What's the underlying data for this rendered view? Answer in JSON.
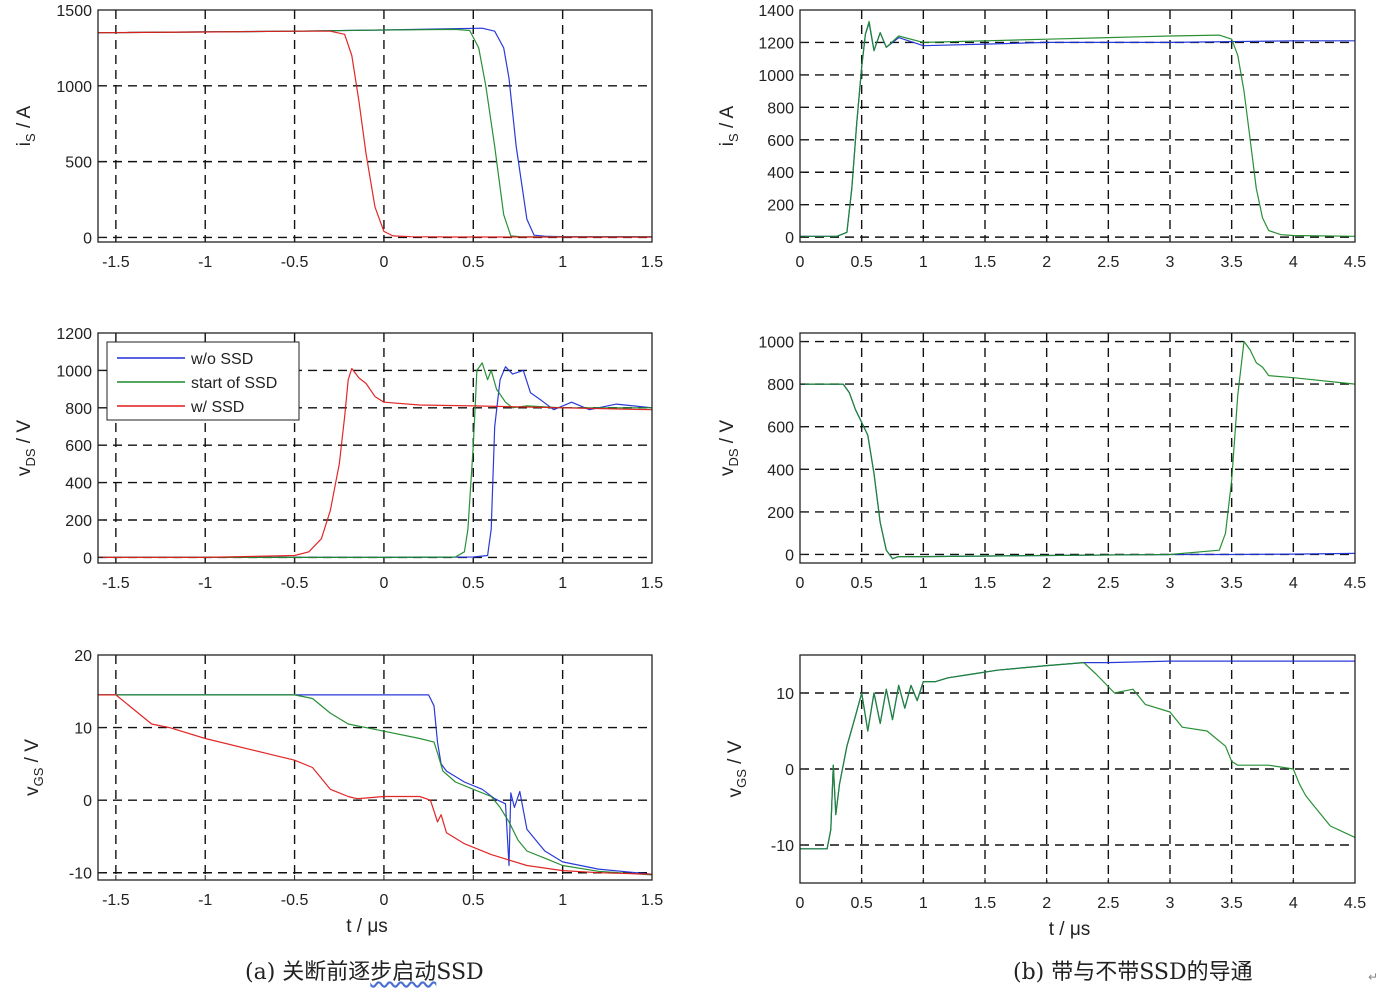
{
  "colors": {
    "wo_ssd": "#1f2fd6",
    "start_ssd": "#1d8a2a",
    "w_ssd": "#e01b1b",
    "grid": "#111111",
    "axis": "#222222"
  },
  "captions": {
    "a_prefix": "(a) 关断前逐",
    "a_underlined": "步启动",
    "a_suffix": "SSD",
    "b": "(b) 带与不带SSD的导通",
    "para_mark": "↵"
  },
  "chart_data": [
    {
      "id": "a1",
      "type": "line",
      "xlim": [
        -1.6,
        1.5
      ],
      "ylim": [
        -30,
        1500
      ],
      "xticks": [
        -1.5,
        -1,
        -0.5,
        0,
        0.5,
        1,
        1.5
      ],
      "xtick_labels": [
        "-1.5",
        "-1",
        "-0.5",
        "0",
        "0.5",
        "1",
        "1.5"
      ],
      "yticks": [
        0,
        500,
        1000,
        1500
      ],
      "ytick_labels": [
        "0",
        "500",
        "1000",
        "1500"
      ],
      "ylabel": "i",
      "ylabel_sub": "S",
      "ylabel_unit": " / A",
      "xlabel": "",
      "grid": true,
      "series": [
        {
          "name": "w/o SSD",
          "color_key": "wo_ssd",
          "x": [
            -1.6,
            -0.5,
            0.0,
            0.3,
            0.55,
            0.62,
            0.67,
            0.7,
            0.74,
            0.8,
            0.84,
            0.9,
            1.0,
            1.5
          ],
          "y": [
            1350,
            1360,
            1368,
            1375,
            1380,
            1360,
            1250,
            1050,
            600,
            120,
            15,
            8,
            5,
            5
          ]
        },
        {
          "name": "start of SSD",
          "color_key": "start_ssd",
          "x": [
            -1.6,
            -0.5,
            0.0,
            0.4,
            0.48,
            0.53,
            0.57,
            0.62,
            0.67,
            0.71,
            0.76,
            0.8,
            1.5
          ],
          "y": [
            1350,
            1360,
            1368,
            1372,
            1365,
            1250,
            1000,
            600,
            150,
            10,
            5,
            4,
            4
          ]
        },
        {
          "name": "w/ SSD",
          "color_key": "w_ssd",
          "x": [
            -1.6,
            -1.0,
            -0.5,
            -0.3,
            -0.22,
            -0.18,
            -0.14,
            -0.1,
            -0.05,
            0.0,
            0.05,
            0.15,
            0.4,
            1.5
          ],
          "y": [
            1350,
            1355,
            1360,
            1360,
            1340,
            1200,
            900,
            550,
            200,
            40,
            10,
            5,
            3,
            2
          ]
        }
      ]
    },
    {
      "id": "a2",
      "type": "line",
      "xlim": [
        -1.6,
        1.5
      ],
      "ylim": [
        -30,
        1200
      ],
      "xticks": [
        -1.5,
        -1,
        -0.5,
        0,
        0.5,
        1,
        1.5
      ],
      "xtick_labels": [
        "-1.5",
        "-1",
        "-0.5",
        "0",
        "0.5",
        "1",
        "1.5"
      ],
      "yticks": [
        0,
        200,
        400,
        600,
        800,
        1000,
        1200
      ],
      "ytick_labels": [
        "0",
        "200",
        "400",
        "600",
        "800",
        "1000",
        "1200"
      ],
      "ylabel": "v",
      "ylabel_sub": "DS",
      "ylabel_unit": " / V",
      "xlabel": "",
      "grid": true,
      "legend": {
        "position": "top-left",
        "entries": [
          "w/o SSD",
          "start of SSD",
          "w/ SSD"
        ]
      },
      "series": [
        {
          "name": "w/o SSD",
          "color_key": "wo_ssd",
          "x": [
            -1.6,
            0.0,
            0.5,
            0.58,
            0.6,
            0.62,
            0.65,
            0.68,
            0.72,
            0.78,
            0.82,
            0.88,
            0.95,
            1.05,
            1.15,
            1.3,
            1.5
          ],
          "y": [
            0,
            0,
            2,
            10,
            150,
            700,
            950,
            1020,
            980,
            1000,
            880,
            840,
            790,
            830,
            790,
            820,
            800
          ]
        },
        {
          "name": "start of SSD",
          "color_key": "start_ssd",
          "x": [
            -1.6,
            0.0,
            0.4,
            0.45,
            0.47,
            0.5,
            0.52,
            0.55,
            0.58,
            0.6,
            0.63,
            0.68,
            0.72,
            0.8,
            1.0,
            1.5
          ],
          "y": [
            0,
            0,
            2,
            30,
            150,
            600,
            1000,
            1040,
            950,
            1000,
            900,
            830,
            800,
            810,
            800,
            800
          ]
        },
        {
          "name": "w/ SSD",
          "color_key": "w_ssd",
          "x": [
            -1.6,
            -1.0,
            -0.5,
            -0.42,
            -0.35,
            -0.3,
            -0.25,
            -0.22,
            -0.2,
            -0.18,
            -0.14,
            -0.1,
            -0.05,
            0.0,
            0.2,
            0.5,
            1.0,
            1.5
          ],
          "y": [
            0,
            0,
            10,
            30,
            100,
            250,
            500,
            750,
            950,
            1010,
            960,
            930,
            860,
            830,
            815,
            810,
            800,
            790
          ]
        }
      ]
    },
    {
      "id": "a3",
      "type": "line",
      "xlim": [
        -1.6,
        1.5
      ],
      "ylim": [
        -11,
        20
      ],
      "xticks": [
        -1.5,
        -1,
        -0.5,
        0,
        0.5,
        1,
        1.5
      ],
      "xtick_labels": [
        "-1.5",
        "-1",
        "-0.5",
        "0",
        "0.5",
        "1",
        "1.5"
      ],
      "yticks": [
        -10,
        0,
        10,
        20
      ],
      "ytick_labels": [
        "-10",
        "0",
        "10",
        "20"
      ],
      "ylabel": "v",
      "ylabel_sub": "GS",
      "ylabel_unit": " / V",
      "xlabel": "t / μs",
      "grid": true,
      "series": [
        {
          "name": "w/o SSD",
          "color_key": "wo_ssd",
          "x": [
            -1.6,
            -1.0,
            -0.5,
            0.0,
            0.25,
            0.28,
            0.3,
            0.32,
            0.35,
            0.45,
            0.55,
            0.62,
            0.68,
            0.7,
            0.71,
            0.73,
            0.76,
            0.8,
            0.85,
            0.9,
            1.0,
            1.2,
            1.5
          ],
          "y": [
            14.5,
            14.5,
            14.5,
            14.5,
            14.5,
            13.0,
            8.0,
            5.0,
            4.0,
            2.5,
            1.5,
            0.2,
            -0.5,
            -9.0,
            1.0,
            -1.0,
            1.2,
            -4.0,
            -5.5,
            -7.0,
            -8.5,
            -9.5,
            -10.2
          ]
        },
        {
          "name": "start of SSD",
          "color_key": "start_ssd",
          "x": [
            -1.6,
            -0.5,
            -0.4,
            -0.3,
            -0.2,
            0.0,
            0.2,
            0.28,
            0.3,
            0.33,
            0.4,
            0.5,
            0.6,
            0.65,
            0.7,
            0.75,
            0.8,
            0.9,
            1.0,
            1.2,
            1.5
          ],
          "y": [
            14.5,
            14.5,
            14.0,
            12.0,
            10.5,
            9.5,
            8.5,
            8.0,
            6.5,
            4.0,
            2.5,
            1.5,
            0.5,
            -1.0,
            -3.0,
            -5.5,
            -7.0,
            -8.0,
            -9.0,
            -9.8,
            -10.3
          ]
        },
        {
          "name": "w/ SSD",
          "color_key": "w_ssd",
          "x": [
            -1.6,
            -1.5,
            -1.4,
            -1.3,
            -1.2,
            -1.0,
            -0.5,
            -0.4,
            -0.35,
            -0.3,
            -0.25,
            -0.2,
            -0.15,
            -0.1,
            0.0,
            0.2,
            0.26,
            0.28,
            0.3,
            0.32,
            0.35,
            0.45,
            0.6,
            0.8,
            1.0,
            1.2,
            1.5
          ],
          "y": [
            14.5,
            14.5,
            12.5,
            10.5,
            10.0,
            8.5,
            5.5,
            4.5,
            3.0,
            1.5,
            1.0,
            0.5,
            0.2,
            0.3,
            0.5,
            0.5,
            0.0,
            -1.5,
            -3.0,
            -2.0,
            -4.5,
            -6.0,
            -7.5,
            -9.0,
            -9.7,
            -10.0,
            -10.2
          ]
        }
      ]
    },
    {
      "id": "b1",
      "type": "line",
      "xlim": [
        0,
        4.5
      ],
      "ylim": [
        -30,
        1400
      ],
      "xticks": [
        0,
        0.5,
        1,
        1.5,
        2,
        2.5,
        3,
        3.5,
        4,
        4.5
      ],
      "xtick_labels": [
        "0",
        "0.5",
        "1",
        "1.5",
        "2",
        "2.5",
        "3",
        "3.5",
        "4",
        "4.5"
      ],
      "yticks": [
        0,
        200,
        400,
        600,
        800,
        1000,
        1200,
        1400
      ],
      "ytick_labels": [
        "0",
        "200",
        "400",
        "600",
        "800",
        "1000",
        "1200",
        "1400"
      ],
      "ylabel": "i",
      "ylabel_sub": "S",
      "ylabel_unit": " / A",
      "xlabel": "",
      "grid": true,
      "series": [
        {
          "name": "w/o SSD",
          "color_key": "wo_ssd",
          "x": [
            0,
            0.3,
            0.38,
            0.42,
            0.46,
            0.5,
            0.53,
            0.56,
            0.6,
            0.65,
            0.7,
            0.8,
            1.0,
            1.5,
            2.0,
            2.5,
            3.0,
            3.5,
            4.0,
            4.5
          ],
          "y": [
            5,
            5,
            30,
            300,
            700,
            1050,
            1250,
            1320,
            1150,
            1260,
            1170,
            1230,
            1180,
            1190,
            1200,
            1200,
            1200,
            1205,
            1210,
            1210
          ]
        },
        {
          "name": "start of SSD",
          "color_key": "start_ssd",
          "x": [
            0,
            0.3,
            0.38,
            0.42,
            0.46,
            0.5,
            0.53,
            0.56,
            0.6,
            0.65,
            0.7,
            0.8,
            1.0,
            1.5,
            2.0,
            2.5,
            3.0,
            3.4,
            3.5,
            3.55,
            3.6,
            3.65,
            3.7,
            3.75,
            3.8,
            3.9,
            4.0,
            4.5
          ],
          "y": [
            5,
            5,
            30,
            300,
            700,
            1050,
            1250,
            1330,
            1150,
            1260,
            1170,
            1240,
            1200,
            1210,
            1220,
            1230,
            1240,
            1245,
            1220,
            1120,
            900,
            600,
            300,
            120,
            40,
            15,
            10,
            5
          ]
        }
      ]
    },
    {
      "id": "b2",
      "type": "line",
      "xlim": [
        0,
        4.5
      ],
      "ylim": [
        -40,
        1040
      ],
      "xticks": [
        0,
        0.5,
        1,
        1.5,
        2,
        2.5,
        3,
        3.5,
        4,
        4.5
      ],
      "xtick_labels": [
        "0",
        "0.5",
        "1",
        "1.5",
        "2",
        "2.5",
        "3",
        "3.5",
        "4",
        "4.5"
      ],
      "yticks": [
        0,
        200,
        400,
        600,
        800,
        1000
      ],
      "ytick_labels": [
        "0",
        "200",
        "400",
        "600",
        "800",
        "1000"
      ],
      "ylabel": "v",
      "ylabel_sub": "DS",
      "ylabel_unit": " / V",
      "xlabel": "",
      "grid": true,
      "series": [
        {
          "name": "w/o SSD",
          "color_key": "wo_ssd",
          "x": [
            0,
            0.35,
            0.4,
            0.45,
            0.5,
            0.55,
            0.6,
            0.65,
            0.7,
            0.75,
            0.8,
            1.0,
            2.0,
            3.0,
            3.5,
            4.0,
            4.5
          ],
          "y": [
            800,
            800,
            760,
            680,
            620,
            560,
            380,
            150,
            20,
            -20,
            -10,
            -10,
            -5,
            0,
            0,
            2,
            5
          ]
        },
        {
          "name": "start of SSD",
          "color_key": "start_ssd",
          "x": [
            0,
            0.35,
            0.4,
            0.45,
            0.5,
            0.55,
            0.6,
            0.65,
            0.7,
            0.75,
            0.8,
            1.0,
            2.0,
            3.0,
            3.4,
            3.45,
            3.5,
            3.55,
            3.6,
            3.65,
            3.7,
            3.75,
            3.8,
            4.0,
            4.5
          ],
          "y": [
            800,
            800,
            760,
            680,
            620,
            560,
            380,
            150,
            20,
            -20,
            -10,
            -10,
            -5,
            0,
            20,
            100,
            350,
            750,
            1000,
            960,
            900,
            880,
            840,
            830,
            800
          ]
        }
      ]
    },
    {
      "id": "b3",
      "type": "line",
      "xlim": [
        0,
        4.5
      ],
      "ylim": [
        -15,
        15
      ],
      "xticks": [
        0,
        0.5,
        1,
        1.5,
        2,
        2.5,
        3,
        3.5,
        4,
        4.5
      ],
      "xtick_labels": [
        "0",
        "0.5",
        "1",
        "1.5",
        "2",
        "2.5",
        "3",
        "3.5",
        "4",
        "4.5"
      ],
      "yticks": [
        -10,
        0,
        10
      ],
      "ytick_labels": [
        "-10",
        "0",
        "10"
      ],
      "ylabel": "v",
      "ylabel_sub": "GS",
      "ylabel_unit": " / V",
      "xlabel": "t / μs",
      "grid": true,
      "series": [
        {
          "name": "w/o SSD",
          "color_key": "wo_ssd",
          "x": [
            0,
            0.22,
            0.25,
            0.27,
            0.29,
            0.32,
            0.38,
            0.45,
            0.5,
            0.55,
            0.6,
            0.65,
            0.7,
            0.75,
            0.8,
            0.85,
            0.9,
            0.95,
            1.0,
            1.1,
            1.2,
            1.4,
            1.6,
            1.8,
            2.0,
            2.3,
            2.5,
            3.0,
            3.5,
            4.0,
            4.5
          ],
          "y": [
            -10.5,
            -10.5,
            -8,
            0.5,
            -6,
            -2,
            3,
            7,
            10,
            5,
            10,
            6,
            10.5,
            6.5,
            11,
            8,
            11,
            9,
            11.5,
            11.5,
            12,
            12.5,
            13,
            13.3,
            13.6,
            14,
            14,
            14.2,
            14.2,
            14.2,
            14.2
          ]
        },
        {
          "name": "start of SSD",
          "color_key": "start_ssd",
          "x": [
            0,
            0.22,
            0.25,
            0.27,
            0.29,
            0.32,
            0.38,
            0.45,
            0.5,
            0.55,
            0.6,
            0.65,
            0.7,
            0.75,
            0.8,
            0.85,
            0.9,
            0.95,
            1.0,
            1.1,
            1.2,
            1.4,
            1.6,
            1.8,
            2.0,
            2.3,
            2.4,
            2.55,
            2.7,
            2.8,
            3.0,
            3.1,
            3.3,
            3.45,
            3.5,
            3.55,
            3.6,
            3.8,
            4.0,
            4.05,
            4.1,
            4.15,
            4.3,
            4.5
          ],
          "y": [
            -10.5,
            -10.5,
            -8,
            0.5,
            -6,
            -2,
            3,
            7,
            10,
            5,
            10,
            6,
            10.5,
            6.5,
            11,
            8,
            11,
            9,
            11.5,
            11.5,
            12,
            12.5,
            13,
            13.3,
            13.6,
            14,
            12.5,
            10,
            10.5,
            8.5,
            7.5,
            5.5,
            5,
            3,
            1,
            0.5,
            0.5,
            0.5,
            0,
            -2,
            -3.5,
            -4.5,
            -7.5,
            -9
          ]
        }
      ]
    }
  ]
}
